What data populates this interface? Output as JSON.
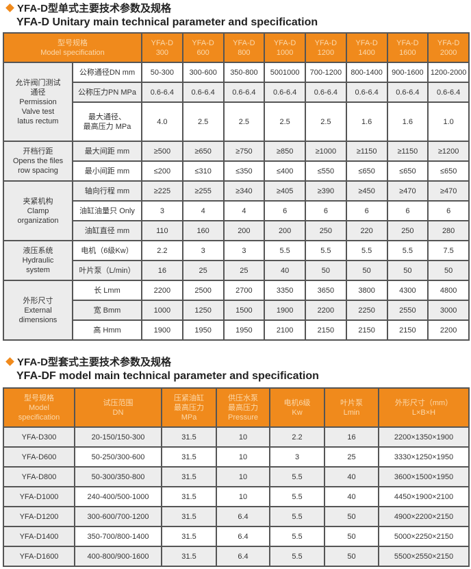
{
  "section1": {
    "title_cn": "YFA-D型单式主要技术参数及规格",
    "title_en": "YFA-D Unitary main technical parameter and specification",
    "header": {
      "label_cn": "型号规格",
      "label_en": "Model specification",
      "models": [
        [
          "YFA-D",
          "300"
        ],
        [
          "YFA-D",
          "600"
        ],
        [
          "YFA-D",
          "800"
        ],
        [
          "YFA-D",
          "1000"
        ],
        [
          "YFA-D",
          "1200"
        ],
        [
          "YFA-D",
          "1400"
        ],
        [
          "YFA-D",
          "1600"
        ],
        [
          "YFA-D",
          "2000"
        ]
      ]
    },
    "groups": [
      {
        "label": [
          "允许阀门测试",
          "通径",
          "Permission",
          "Valve test",
          "latus rectum"
        ],
        "rows": [
          {
            "param": [
              "公称通径DN mm"
            ],
            "values": [
              "50-300",
              "300-600",
              "350-800",
              "5001000",
              "700-1200",
              "800-1400",
              "900-1600",
              "1200-2000"
            ]
          },
          {
            "param": [
              "公称压力PN MPa"
            ],
            "values": [
              "0.6-6.4",
              "0.6-6.4",
              "0.6-6.4",
              "0.6-6.4",
              "0.6-6.4",
              "0.6-6.4",
              "0.6-6.4",
              "0.6-6.4"
            ]
          },
          {
            "param": [
              "最大通径、",
              "最高压力 MPa"
            ],
            "values": [
              "4.0",
              "2.5",
              "2.5",
              "2.5",
              "2.5",
              "1.6",
              "1.6",
              "1.0"
            ]
          }
        ]
      },
      {
        "label": [
          "开档行距",
          "Opens the files",
          "row spacing"
        ],
        "rows": [
          {
            "param": [
              "最大间距 mm"
            ],
            "values": [
              "≥500",
              "≥650",
              "≥750",
              "≥850",
              "≥1000",
              "≥1150",
              "≥1150",
              "≥1200"
            ]
          },
          {
            "param": [
              "最小间距 mm"
            ],
            "values": [
              "≤200",
              "≤310",
              "≤350",
              "≤400",
              "≤550",
              "≤650",
              "≤650",
              "≤650"
            ]
          }
        ]
      },
      {
        "label": [
          "夹紧机构",
          "Clamp",
          "organization"
        ],
        "rows": [
          {
            "param": [
              "轴向行程 mm"
            ],
            "values": [
              "≥225",
              "≥255",
              "≥340",
              "≥405",
              "≥390",
              "≥450",
              "≥470",
              "≥470"
            ]
          },
          {
            "param": [
              "油缸油量只 Only"
            ],
            "values": [
              "3",
              "4",
              "4",
              "6",
              "6",
              "6",
              "6",
              "6"
            ]
          },
          {
            "param": [
              "油缸直径 mm"
            ],
            "values": [
              "110",
              "160",
              "200",
              "200",
              "250",
              "220",
              "250",
              "280"
            ]
          }
        ]
      },
      {
        "label": [
          "液压系统",
          "Hydraulic",
          "system"
        ],
        "rows": [
          {
            "param": [
              "电机（6级Kw）"
            ],
            "values": [
              "2.2",
              "3",
              "3",
              "5.5",
              "5.5",
              "5.5",
              "5.5",
              "7.5"
            ]
          },
          {
            "param": [
              "叶片泵（L/min）"
            ],
            "values": [
              "16",
              "25",
              "25",
              "40",
              "50",
              "50",
              "50",
              "50"
            ]
          }
        ]
      },
      {
        "label": [
          "外形尺寸",
          "External",
          "dimensions"
        ],
        "rows": [
          {
            "param": [
              "长 Lmm"
            ],
            "values": [
              "2200",
              "2500",
              "2700",
              "3350",
              "3650",
              "3800",
              "4300",
              "4800"
            ]
          },
          {
            "param": [
              "宽 Bmm"
            ],
            "values": [
              "1000",
              "1250",
              "1500",
              "1900",
              "2200",
              "2250",
              "2550",
              "3000"
            ]
          },
          {
            "param": [
              "高 Hmm"
            ],
            "values": [
              "1900",
              "1950",
              "1950",
              "2100",
              "2150",
              "2150",
              "2150",
              "2200"
            ]
          }
        ]
      }
    ]
  },
  "section2": {
    "title_cn": "YFA-D型套式主要技术参数及规格",
    "title_en": "YFA-DF model main technical parameter and specification",
    "headers": [
      [
        "型号规格",
        "Model",
        "specification"
      ],
      [
        "试压范围",
        "DN"
      ],
      [
        "压紧油缸",
        "最高压力",
        "MPa"
      ],
      [
        "供压水泵",
        "最高压力",
        "Pressure"
      ],
      [
        "电机6级",
        "Kw"
      ],
      [
        "叶片泵",
        "Lmin"
      ],
      [
        "外形尺寸（mm）",
        "L×B×H"
      ]
    ],
    "rows": [
      [
        "YFA-D300",
        "20-150/150-300",
        "31.5",
        "10",
        "2.2",
        "16",
        "2200×1350×1900"
      ],
      [
        "YFA-D600",
        "50-250/300-600",
        "31.5",
        "10",
        "3",
        "25",
        "3330×1250×1950"
      ],
      [
        "YFA-D800",
        "50-300/350-800",
        "31.5",
        "10",
        "5.5",
        "40",
        "3600×1500×1950"
      ],
      [
        "YFA-D1000",
        "240-400/500-1000",
        "31.5",
        "10",
        "5.5",
        "40",
        "4450×1900×2100"
      ],
      [
        "YFA-D1200",
        "300-600/700-1200",
        "31.5",
        "6.4",
        "5.5",
        "50",
        "4900×2200×2150"
      ],
      [
        "YFA-D1400",
        "350-700/800-1400",
        "31.5",
        "6.4",
        "5.5",
        "50",
        "5000×2250×2150"
      ],
      [
        "YFA-D1600",
        "400-800/900-1600",
        "31.5",
        "6.4",
        "5.5",
        "50",
        "5500×2550×2150"
      ]
    ]
  },
  "colors": {
    "header_bg": "#f08a1c",
    "header_text": "#fbd9ac",
    "row_alt": "#ededed",
    "bullet": "#f08a1c"
  }
}
